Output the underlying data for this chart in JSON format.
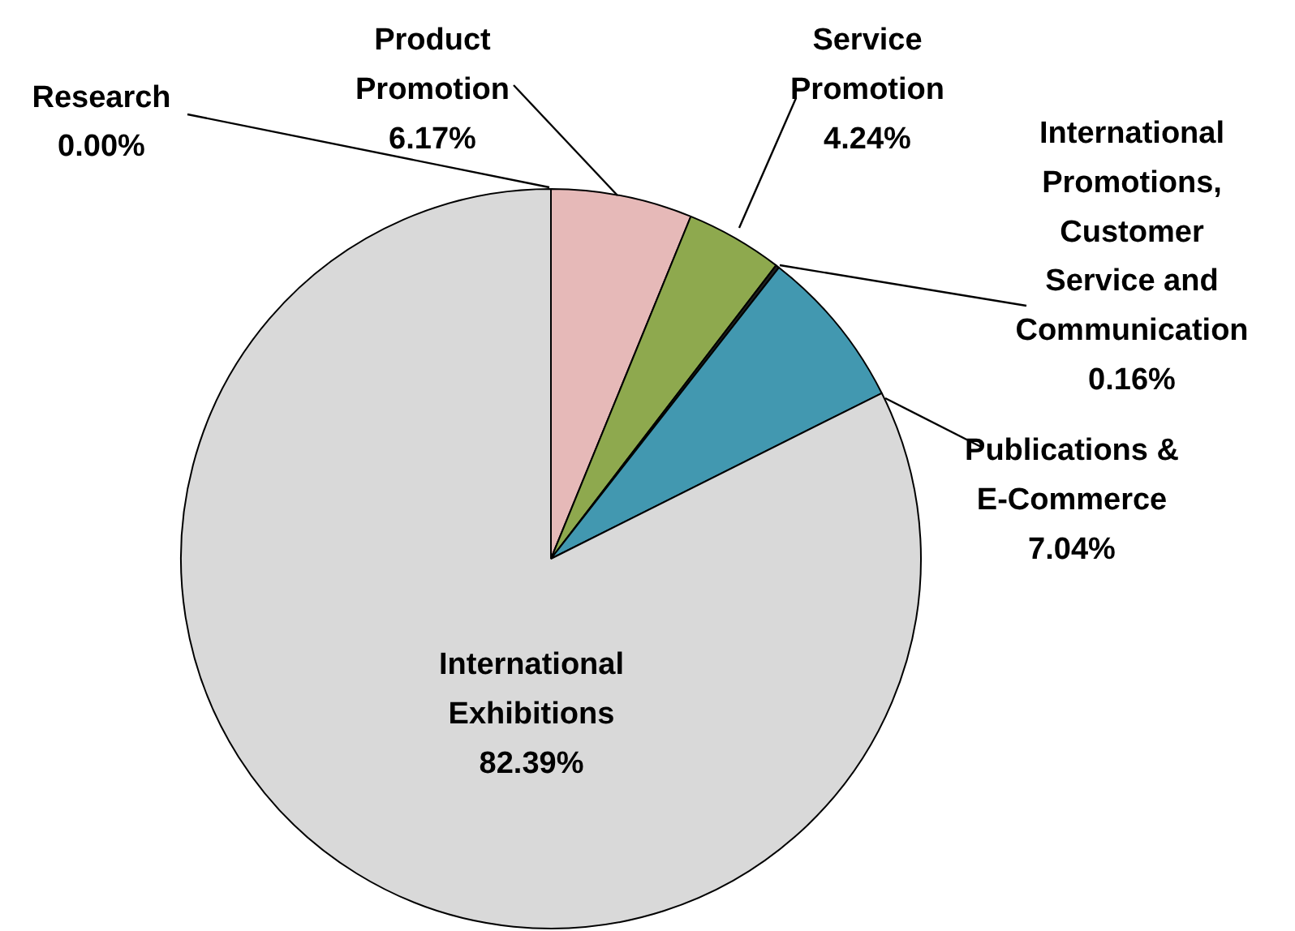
{
  "chart_data": {
    "type": "pie",
    "categories": [
      "Research",
      "Product Promotion",
      "Service Promotion",
      "International Promotions, Customer Service and Communication",
      "Publications & E-Commerce",
      "International Exhibitions"
    ],
    "values": [
      0.0,
      6.17,
      4.24,
      0.16,
      7.04,
      82.39
    ],
    "colors": [
      "#4f81bd",
      "#e6b9b8",
      "#8ea94e",
      "#1f1f1f",
      "#4298b0",
      "#d9d9d9"
    ],
    "value_labels": [
      "0.00%",
      "6.17%",
      "4.24%",
      "0.16%",
      "7.04%",
      "82.39%"
    ]
  }
}
